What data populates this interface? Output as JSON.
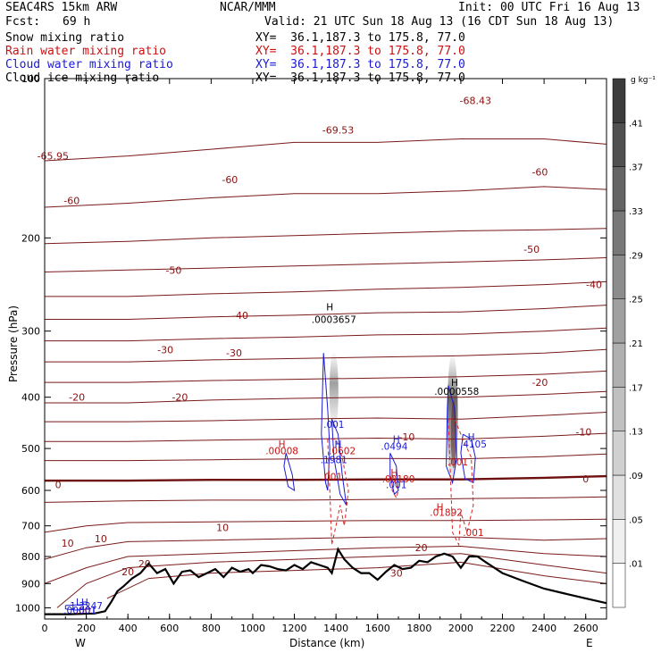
{
  "header": {
    "model": "SEAC4RS 15km ARW",
    "org": "NCAR/MMM",
    "init": "Init: 00 UTC Fri 16 Aug 13",
    "fcst_label": "Fcst:",
    "fcst_value": "69 h",
    "valid": "Valid: 21 UTC Sun 18 Aug 13 (16 CDT Sun 18 Aug 13)",
    "fields": [
      {
        "name": "Snow mixing ratio",
        "xy": "XY=  36.1,187.3 to 175.8, 77.0",
        "color": "#000000"
      },
      {
        "name": "Rain water mixing ratio",
        "xy": "XY=  36.1,187.3 to 175.8, 77.0",
        "color": "#cc1111"
      },
      {
        "name": "Cloud water mixing ratio",
        "xy": "XY=  36.1,187.3 to 175.8, 77.0",
        "color": "#1a1ad6"
      },
      {
        "name": "Cloud ice mixing ratio",
        "xy": "XY=  36.1,187.3 to 175.8, 77.0",
        "color": "#000000"
      }
    ]
  },
  "chart_data": {
    "type": "contour",
    "xlabel": "Distance (km)",
    "ylabel": "Pressure (hPa)",
    "xlim": [
      0,
      2700
    ],
    "ylim": [
      1050,
      100
    ],
    "xticks": [
      "0",
      "200",
      "400",
      "600",
      "800",
      "1000",
      "1200",
      "1400",
      "1600",
      "1800",
      "2000",
      "2200",
      "2400",
      "2600"
    ],
    "yticks": [
      "100",
      "200",
      "300",
      "400",
      "500",
      "600",
      "700",
      "800",
      "900",
      "1000"
    ],
    "end_labels": {
      "left": "W",
      "right": "E"
    },
    "colorbar": {
      "unit": "g kg⁻¹",
      "ticks": [
        ".41",
        ".37",
        ".33",
        ".29",
        ".25",
        ".21",
        ".17",
        ".13",
        ".09",
        ".05",
        ".01"
      ],
      "colors": [
        "#ffffff",
        "#f0f0f0",
        "#e0e0e0",
        "#d0d0d0",
        "#c0c0c0",
        "#b0b0b0",
        "#a0a0a0",
        "#8c8c8c",
        "#787878",
        "#646464",
        "#505050",
        "#3c3c3c"
      ]
    },
    "temperature_contours": {
      "color": "#7a1a1a",
      "levels_c": [
        -70,
        -65,
        -60,
        -55,
        -50,
        -45,
        -40,
        -35,
        -30,
        -25,
        -20,
        -15,
        -10,
        -5,
        0,
        5,
        10,
        15,
        20,
        25,
        30
      ],
      "labels": [
        {
          "text": "-69.53",
          "x": 1410,
          "p": 125
        },
        {
          "text": "-68.43",
          "x": 2070,
          "p": 110
        },
        {
          "text": "-65.95",
          "x": 40,
          "p": 140
        },
        {
          "text": "-60",
          "x": 130,
          "p": 170
        },
        {
          "text": "-60",
          "x": 890,
          "p": 155
        },
        {
          "text": "-60",
          "x": 2380,
          "p": 150
        },
        {
          "text": "-50",
          "x": 620,
          "p": 230
        },
        {
          "text": "-50",
          "x": 2340,
          "p": 210
        },
        {
          "text": "-40",
          "x": 940,
          "p": 280
        },
        {
          "text": "-40",
          "x": 2640,
          "p": 245
        },
        {
          "text": "-30",
          "x": 580,
          "p": 325
        },
        {
          "text": "-30",
          "x": 910,
          "p": 330
        },
        {
          "text": "-20",
          "x": 155,
          "p": 400
        },
        {
          "text": "-20",
          "x": 650,
          "p": 400
        },
        {
          "text": "-20",
          "x": 2380,
          "p": 375
        },
        {
          "text": "-10",
          "x": 1740,
          "p": 475
        },
        {
          "text": "-10",
          "x": 2590,
          "p": 465
        },
        {
          "text": "0",
          "x": 65,
          "p": 585
        },
        {
          "text": "0",
          "x": 2600,
          "p": 570
        },
        {
          "text": "10",
          "x": 110,
          "p": 755
        },
        {
          "text": "10",
          "x": 270,
          "p": 740
        },
        {
          "text": "10",
          "x": 855,
          "p": 705
        },
        {
          "text": "20",
          "x": 400,
          "p": 855
        },
        {
          "text": "20",
          "x": 480,
          "p": 825
        },
        {
          "text": "20",
          "x": 1810,
          "p": 770
        },
        {
          "text": "30",
          "x": 1690,
          "p": 860
        }
      ]
    },
    "annotations": [
      {
        "text": "H",
        "x": 1370,
        "p": 270,
        "color": "#000000"
      },
      {
        "text": ".0003657",
        "x": 1390,
        "p": 285,
        "color": "#000000"
      },
      {
        "text": "H",
        "x": 1970,
        "p": 375,
        "color": "#000000"
      },
      {
        "text": ".0000558",
        "x": 1980,
        "p": 390,
        "color": "#000000"
      },
      {
        "text": "H",
        "x": 1140,
        "p": 490,
        "color": "#cc1111"
      },
      {
        "text": ".00008",
        "x": 1140,
        "p": 505,
        "color": "#cc1111"
      },
      {
        "text": ".0602",
        "x": 1430,
        "p": 505,
        "color": "#cc1111"
      },
      {
        "text": "H",
        "x": 1680,
        "p": 555,
        "color": "#cc1111"
      },
      {
        "text": ".00180",
        "x": 1700,
        "p": 570,
        "color": "#cc1111"
      },
      {
        "text": "H",
        "x": 1900,
        "p": 645,
        "color": "#cc1111"
      },
      {
        "text": ".01892",
        "x": 1930,
        "p": 660,
        "color": "#cc1111"
      },
      {
        "text": ".001",
        "x": 2060,
        "p": 720,
        "color": "#cc1111"
      },
      {
        "text": ".001",
        "x": 1380,
        "p": 565,
        "color": "#cc1111"
      },
      {
        "text": ".001",
        "x": 1985,
        "p": 530,
        "color": "#cc1111"
      },
      {
        "text": ".001",
        "x": 1390,
        "p": 450,
        "color": "#1a1ad6"
      },
      {
        "text": "H",
        "x": 1410,
        "p": 490,
        "color": "#1a1ad6"
      },
      {
        "text": ".1981",
        "x": 1390,
        "p": 525,
        "color": "#1a1ad6"
      },
      {
        "text": "H",
        "x": 1690,
        "p": 480,
        "color": "#1a1ad6"
      },
      {
        "text": ".0494",
        "x": 1680,
        "p": 495,
        "color": "#1a1ad6"
      },
      {
        "text": ".001",
        "x": 1690,
        "p": 585,
        "color": "#1a1ad6"
      },
      {
        "text": "H",
        "x": 2050,
        "p": 475,
        "color": "#1a1ad6"
      },
      {
        "text": ".4105",
        "x": 2060,
        "p": 490,
        "color": "#1a1ad6"
      },
      {
        "text": "LH",
        "x": 180,
        "p": 975,
        "color": "#1a1ad6"
      },
      {
        "text": "1.3247",
        "x": 200,
        "p": 990,
        "color": "#1a1ad6"
      },
      {
        "text": ".001",
        "x": 200,
        "p": 1010,
        "color": "#cc1111"
      },
      {
        "text": ".00001",
        "x": 170,
        "p": 1010,
        "color": "#1a1ad6"
      }
    ],
    "terrain_pressure": {
      "x": [
        0,
        120,
        240,
        290,
        320,
        350,
        380,
        420,
        460,
        500,
        540,
        580,
        620,
        660,
        700,
        740,
        780,
        820,
        860,
        900,
        940,
        980,
        1000,
        1040,
        1080,
        1120,
        1160,
        1200,
        1240,
        1280,
        1320,
        1360,
        1380,
        1410,
        1440,
        1480,
        1520,
        1560,
        1600,
        1640,
        1680,
        1720,
        1760,
        1800,
        1840,
        1880,
        1920,
        1960,
        2000,
        2040,
        2080,
        2120,
        2200,
        2300,
        2400,
        2500,
        2600,
        2700
      ],
      "p": [
        1028,
        1028,
        1025,
        1015,
        975,
        930,
        910,
        880,
        860,
        825,
        860,
        845,
        900,
        855,
        850,
        875,
        860,
        845,
        875,
        840,
        855,
        845,
        860,
        830,
        835,
        845,
        850,
        830,
        845,
        820,
        830,
        840,
        860,
        775,
        810,
        840,
        860,
        860,
        885,
        855,
        830,
        845,
        840,
        815,
        820,
        800,
        790,
        800,
        840,
        800,
        800,
        820,
        860,
        890,
        920,
        940,
        960,
        980
      ]
    },
    "temperature_line_pressure": {
      "0": {
        "x": [
          0,
          400,
          800,
          1200,
          1600,
          2000,
          2400,
          2700
        ],
        "p": [
          575,
          575,
          573,
          573,
          572,
          572,
          568,
          564
        ]
      },
      "-5": {
        "x": [
          0,
          400,
          800,
          1200,
          1600,
          2000,
          2400,
          2700
        ],
        "p": [
          527,
          527,
          525,
          523,
          522,
          523,
          518,
          512
        ]
      },
      "-10": {
        "x": [
          0,
          400,
          800,
          1200,
          1600,
          2000,
          2400,
          2700
        ],
        "p": [
          485,
          485,
          482,
          480,
          478,
          480,
          474,
          468
        ]
      },
      "-15": {
        "x": [
          0,
          400,
          800,
          1200,
          1600,
          2000,
          2400,
          2700
        ],
        "p": [
          445,
          445,
          443,
          440,
          438,
          440,
          433,
          427
        ]
      },
      "-20": {
        "x": [
          0,
          400,
          800,
          1200,
          1600,
          2000,
          2400,
          2700
        ],
        "p": [
          410,
          410,
          405,
          402,
          400,
          400,
          395,
          390
        ]
      },
      "-25": {
        "x": [
          0,
          400,
          800,
          1200,
          1600,
          2000,
          2400,
          2700
        ],
        "p": [
          375,
          375,
          372,
          370,
          368,
          366,
          362,
          357
        ]
      },
      "-30": {
        "x": [
          0,
          400,
          800,
          1200,
          1600,
          2000,
          2400,
          2700
        ],
        "p": [
          343,
          343,
          340,
          338,
          336,
          334,
          330,
          325
        ]
      },
      "-35": {
        "x": [
          0,
          400,
          800,
          1200,
          1600,
          2000,
          2400,
          2700
        ],
        "p": [
          313,
          313,
          310,
          308,
          305,
          304,
          300,
          296
        ]
      },
      "-40": {
        "x": [
          0,
          400,
          800,
          1200,
          1600,
          2000,
          2400,
          2700
        ],
        "p": [
          285,
          285,
          282,
          280,
          277,
          276,
          272,
          268
        ]
      },
      "-45": {
        "x": [
          0,
          400,
          800,
          1200,
          1600,
          2000,
          2400,
          2700
        ],
        "p": [
          258,
          258,
          255,
          253,
          250,
          248,
          245,
          242
        ]
      },
      "-50": {
        "x": [
          0,
          400,
          800,
          1200,
          1600,
          2000,
          2400,
          2700
        ],
        "p": [
          232,
          230,
          228,
          226,
          224,
          222,
          220,
          218
        ]
      },
      "-55": {
        "x": [
          0,
          400,
          800,
          1200,
          1600,
          2000,
          2400,
          2700
        ],
        "p": [
          205,
          203,
          200,
          198,
          196,
          194,
          193,
          192
        ]
      },
      "-60": {
        "x": [
          0,
          400,
          800,
          1200,
          1600,
          2000,
          2400,
          2700
        ],
        "p": [
          175,
          172,
          168,
          165,
          165,
          163,
          160,
          162
        ]
      },
      "-65": {
        "x": [
          0,
          400,
          800,
          1200,
          1600,
          2000,
          2400,
          2700
        ],
        "p": [
          143,
          140,
          136,
          132,
          132,
          130,
          130,
          133
        ]
      },
      "5": {
        "x": [
          0,
          200,
          400,
          800,
          1200,
          1600,
          2000,
          2400,
          2700
        ],
        "p": [
          632,
          630,
          628,
          626,
          626,
          624,
          622,
          620,
          617
        ]
      },
      "10": {
        "x": [
          0,
          200,
          400,
          800,
          1200,
          1600,
          2000,
          2400,
          2700
        ],
        "p": [
          720,
          700,
          690,
          688,
          686,
          684,
          684,
          682,
          680
        ]
      },
      "15": {
        "x": [
          0,
          200,
          400,
          800,
          1200,
          1600,
          2000,
          2400,
          2700
        ],
        "p": [
          810,
          770,
          750,
          745,
          740,
          735,
          735,
          745,
          740
        ]
      },
      "20": {
        "x": [
          0,
          200,
          400,
          800,
          1200,
          1600,
          2000,
          2400,
          2700
        ],
        "p": [
          900,
          840,
          800,
          790,
          780,
          770,
          765,
          790,
          800
        ]
      },
      "25": {
        "x": [
          60,
          200,
          400,
          800,
          1200,
          1600,
          2000,
          2400,
          2700
        ],
        "p": [
          1000,
          900,
          840,
          820,
          810,
          800,
          790,
          830,
          860
        ]
      },
      "30": {
        "x": [
          300,
          500,
          800,
          1200,
          1600,
          2000,
          2400,
          2700
        ],
        "p": [
          960,
          880,
          860,
          850,
          840,
          820,
          870,
          900
        ]
      }
    }
  }
}
